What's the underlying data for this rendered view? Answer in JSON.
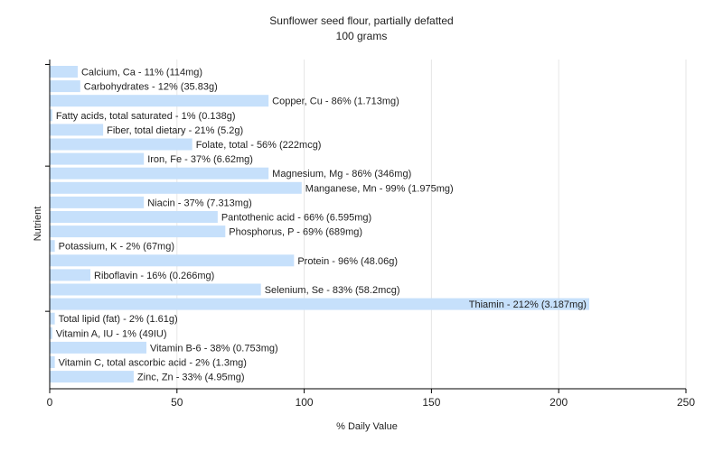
{
  "chart_data": {
    "type": "bar",
    "orientation": "horizontal",
    "title": "Sunflower seed flour, partially defatted",
    "subtitle": "100 grams",
    "xlabel": "% Daily Value",
    "ylabel": "Nutrient",
    "xlim": [
      0,
      250
    ],
    "xticks": [
      0,
      50,
      100,
      150,
      200,
      250
    ],
    "grid": true,
    "bar_color": "#c6e0fb",
    "categories": [
      "Calcium, Ca",
      "Carbohydrates",
      "Copper, Cu",
      "Fatty acids, total saturated",
      "Fiber, total dietary",
      "Folate, total",
      "Iron, Fe",
      "Magnesium, Mg",
      "Manganese, Mn",
      "Niacin",
      "Pantothenic acid",
      "Phosphorus, P",
      "Potassium, K",
      "Protein",
      "Riboflavin",
      "Selenium, Se",
      "Thiamin",
      "Total lipid (fat)",
      "Vitamin A, IU",
      "Vitamin B-6",
      "Vitamin C, total ascorbic acid",
      "Zinc, Zn"
    ],
    "values": [
      11,
      12,
      86,
      1,
      21,
      56,
      37,
      86,
      99,
      37,
      66,
      69,
      2,
      96,
      16,
      83,
      212,
      2,
      1,
      38,
      2,
      33
    ],
    "labels": [
      "Calcium, Ca - 11% (114mg)",
      "Carbohydrates - 12% (35.83g)",
      "Copper, Cu - 86% (1.713mg)",
      "Fatty acids, total saturated - 1% (0.138g)",
      "Fiber, total dietary - 21% (5.2g)",
      "Folate, total - 56% (222mcg)",
      "Iron, Fe - 37% (6.62mg)",
      "Magnesium, Mg - 86% (346mg)",
      "Manganese, Mn - 99% (1.975mg)",
      "Niacin - 37% (7.313mg)",
      "Pantothenic acid - 66% (6.595mg)",
      "Phosphorus, P - 69% (689mg)",
      "Potassium, K - 2% (67mg)",
      "Protein - 96% (48.06g)",
      "Riboflavin - 16% (0.266mg)",
      "Selenium, Se - 83% (58.2mcg)",
      "Thiamin - 212% (3.187mg)",
      "Total lipid (fat) - 2% (1.61g)",
      "Vitamin A, IU - 1% (49IU)",
      "Vitamin B-6 - 38% (0.753mg)",
      "Vitamin C, total ascorbic acid - 2% (1.3mg)",
      "Zinc, Zn - 33% (4.95mg)"
    ]
  }
}
